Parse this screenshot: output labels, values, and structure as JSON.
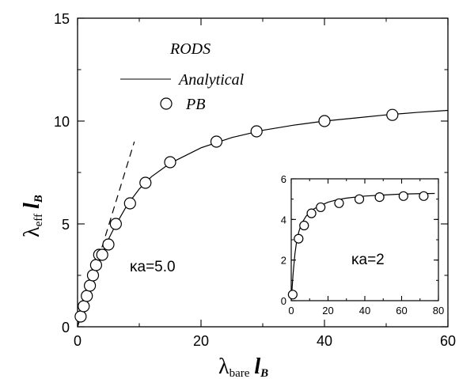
{
  "chart_data": [
    {
      "type": "line",
      "xlim": [
        0,
        60
      ],
      "ylim": [
        0,
        15
      ],
      "x_ticks": [
        "0",
        "20",
        "40",
        "60"
      ],
      "y_ticks": [
        "0",
        "5",
        "10",
        "15"
      ],
      "xlabel": {
        "main": "λ",
        "sub": "bare",
        "tail": "l",
        "tail_sub": "B"
      },
      "ylabel": {
        "main": "λ",
        "sub": "eff",
        "tail": "l",
        "tail_sub": "B"
      },
      "legend": {
        "title": "RODS",
        "entries": [
          {
            "name": "Analytical",
            "style": "solid-line"
          },
          {
            "name": "PB",
            "style": "open-circle"
          }
        ]
      },
      "annotation": "κa=5.0",
      "series": [
        {
          "name": "Analytical",
          "style": "solid",
          "x": [
            0,
            0.5,
            1,
            1.5,
            2,
            3,
            4,
            5,
            6,
            8,
            10,
            12,
            15,
            20,
            25,
            30,
            35,
            40,
            45,
            50,
            55,
            60
          ],
          "y": [
            0,
            0.48,
            0.95,
            1.42,
            1.9,
            2.75,
            3.55,
            4.25,
            4.85,
            5.9,
            6.7,
            7.3,
            7.95,
            8.7,
            9.2,
            9.55,
            9.8,
            10.0,
            10.15,
            10.3,
            10.42,
            10.52
          ]
        },
        {
          "name": "",
          "style": "dashed",
          "x": [
            0,
            9.2
          ],
          "y": [
            0,
            9.0
          ]
        },
        {
          "name": "PB",
          "style": "markers",
          "x": [
            0.5,
            1,
            1.5,
            2,
            2.5,
            3,
            3.5,
            4,
            5,
            6.2,
            8.5,
            11,
            15,
            22.5,
            29,
            40,
            51
          ],
          "y": [
            0.5,
            1.0,
            1.5,
            2.0,
            2.5,
            3.0,
            3.5,
            3.5,
            4.0,
            5.0,
            6.0,
            7.0,
            8.0,
            9.0,
            9.5,
            10.0,
            10.3
          ]
        }
      ]
    },
    {
      "type": "line",
      "xlim": [
        0,
        80
      ],
      "ylim": [
        0,
        6
      ],
      "x_ticks": [
        "0",
        "20",
        "40",
        "60",
        "80"
      ],
      "y_ticks": [
        "0",
        "2",
        "4",
        "6"
      ],
      "annotation": "κa=2",
      "series": [
        {
          "name": "Analytical",
          "style": "solid",
          "x": [
            0,
            1,
            2,
            3,
            4,
            5,
            6,
            8,
            10,
            12,
            15,
            20,
            25,
            30,
            40,
            50,
            60,
            70,
            78
          ],
          "y": [
            0,
            1.3,
            2.3,
            2.95,
            3.35,
            3.65,
            3.85,
            4.15,
            4.35,
            4.5,
            4.65,
            4.85,
            4.97,
            5.05,
            5.15,
            5.2,
            5.25,
            5.27,
            5.28
          ]
        },
        {
          "name": "PB",
          "style": "markers",
          "x": [
            0.8,
            4,
            7,
            11,
            16,
            26,
            37,
            48,
            61,
            72
          ],
          "y": [
            0.3,
            3.05,
            3.7,
            4.3,
            4.6,
            4.8,
            5.0,
            5.1,
            5.15,
            5.15
          ]
        }
      ]
    }
  ]
}
